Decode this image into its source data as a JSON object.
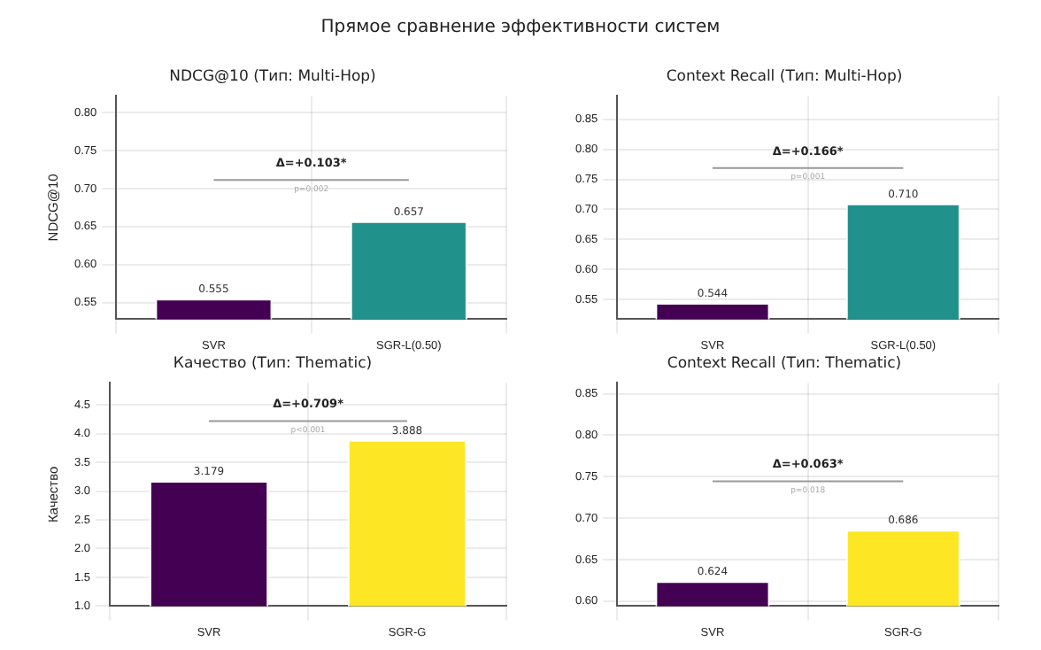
{
  "chart_data": [
    {
      "type": "other",
      "title": "Прямое сравнение эффективности систем"
    },
    {
      "type": "bar",
      "title": "NDCG@10 (Тип: Multi-Hop)",
      "ylabel": "NDCG@10",
      "categories": [
        "SVR",
        "SGR-L(0.50)"
      ],
      "values": [
        0.555,
        0.657
      ],
      "colors": [
        "#440154",
        "#21918c"
      ],
      "value_labels": [
        "0.555",
        "0.657"
      ],
      "ylim": [
        0.528,
        0.822
      ],
      "yticks": [
        0.55,
        {
          "value": 0.6,
          "label": "0.60"
        },
        0.65,
        {
          "value": 0.7,
          "label": "0.70"
        },
        0.75,
        {
          "value": 0.8,
          "label": "0.80"
        }
      ],
      "grid": true,
      "annotations": [
        "Δ=+0.103*",
        "p=0.002"
      ]
    },
    {
      "type": "bar",
      "title": "Context Recall (Тип: Multi-Hop)",
      "categories": [
        "SVR",
        "SGR-L(0.50)"
      ],
      "values": [
        0.544,
        0.71
      ],
      "colors": [
        "#440154",
        "#21918c"
      ],
      "value_labels": [
        "0.544",
        "0.710"
      ],
      "ylim": [
        0.517,
        0.889
      ],
      "yticks": [
        0.55,
        {
          "value": 0.6,
          "label": "0.60"
        },
        0.65,
        {
          "value": 0.7,
          "label": "0.70"
        },
        0.75,
        {
          "value": 0.8,
          "label": "0.80"
        },
        0.85
      ],
      "grid": true,
      "annotations": [
        "Δ=+0.166*",
        "p=0.001"
      ]
    },
    {
      "type": "bar",
      "title": "Качество (Тип: Thematic)",
      "ylabel": "Качество",
      "categories": [
        "SVR",
        "SGR-G"
      ],
      "values": [
        3.179,
        3.888
      ],
      "colors": [
        "#440154",
        "#fde725"
      ],
      "value_labels": [
        "3.179",
        "3.888"
      ],
      "ylim": [
        1.0,
        4.88
      ],
      "yticks": [
        {
          "value": 1,
          "label": "1.0"
        },
        1.5,
        {
          "value": 2,
          "label": "2.0"
        },
        2.5,
        {
          "value": 3,
          "label": "3.0"
        },
        3.5,
        {
          "value": 4,
          "label": "4.0"
        },
        4.5
      ],
      "grid": true,
      "annotations": [
        "Δ=+0.709*",
        "p<0.001"
      ]
    },
    {
      "type": "bar",
      "title": "Context Recall (Тип: Thematic)",
      "categories": [
        "SVR",
        "SGR-G"
      ],
      "values": [
        0.624,
        0.686
      ],
      "colors": [
        "#440154",
        "#fde725"
      ],
      "value_labels": [
        "0.624",
        "0.686"
      ],
      "ylim": [
        0.594,
        0.863
      ],
      "yticks": [
        {
          "value": 0.6,
          "label": "0.60"
        },
        0.65,
        {
          "value": 0.7,
          "label": "0.70"
        },
        0.75,
        {
          "value": 0.8,
          "label": "0.80"
        },
        0.85
      ],
      "grid": true,
      "annotations": [
        "Δ=+0.063*",
        "p=0.018"
      ]
    }
  ]
}
